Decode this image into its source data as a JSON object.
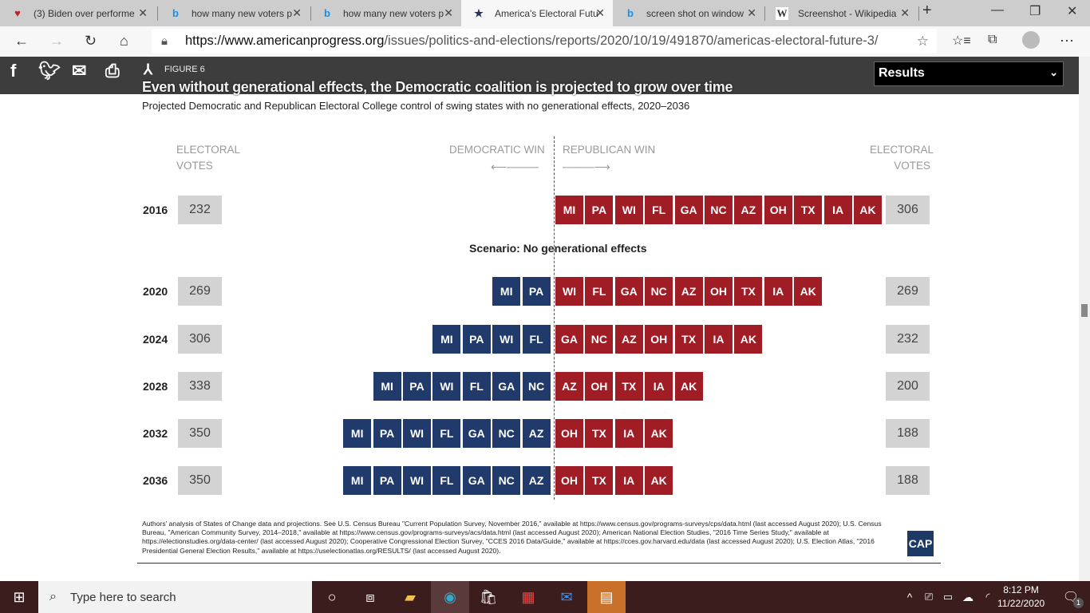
{
  "browser": {
    "tabs": [
      {
        "label": "(3) Biden over performe",
        "icon": "cap-favicon"
      },
      {
        "label": "how many new voters p",
        "icon": "bing-icon"
      },
      {
        "label": "how many new voters p",
        "icon": "bing-icon"
      },
      {
        "label": "America's Electoral Futu",
        "icon": "star-favicon",
        "active": true
      },
      {
        "label": "screen shot on window",
        "icon": "bing-icon"
      },
      {
        "label": "Screenshot - Wikipedia",
        "icon": "wikipedia-icon"
      }
    ],
    "url_host": "https://www.americanprogress.org",
    "url_path": "/issues/politics-and-elections/reports/2020/10/19/491870/americas-electoral-future-3/"
  },
  "page": {
    "results_select": "Results",
    "figure_label": "FIGURE 6",
    "title": "Even without generational effects, the Democratic coalition is projected to grow over time",
    "subtitle": "Projected Democratic and Republican Electoral College control of swing states with no generational effects, 2020–2036",
    "hdr_left": "ELECTORAL\nVOTES",
    "hdr_dem": "DEMOCRATIC WIN",
    "hdr_rep": "REPUBLICAN WIN",
    "hdr_right": "ELECTORAL\nVOTES",
    "scenario": "Scenario: No generational effects",
    "note": "Authors' analysis of States of Change data and projections. See U.S. Census Bureau \"Current Population Survey, November 2016,\" available at https://www.census.gov/programs-surveys/cps/data.html (last accessed August 2020); U.S. Census Bureau, \"American Community Survey, 2014–2018,\" available at https://www.census.gov/programs-surveys/acs/data.html (last accessed August 2020); American National Election Studies, \"2016 Time Series Study,\" available at https://electionstudies.org/data-center/ (last accessed August 2020); Cooperative Congressional Election Survey, \"CCES 2016 Data/Guide,\" available at https://cces.gov.harvard.edu/data (last accessed August 2020); U.S. Election Atlas, \"2016 Presidential General Election Results,\" available at https://uselectionatlas.org/RESULTS/ (last accessed August 2020).",
    "logo": "CAP"
  },
  "chart_data": {
    "type": "table",
    "colors": {
      "democratic": "#1f3a6b",
      "republican": "#a11d26",
      "votes_box": "#d3d3d3"
    },
    "rows": [
      {
        "year": "2016",
        "dem_votes": "232",
        "dem": [],
        "rep": [
          "MI",
          "PA",
          "WI",
          "FL",
          "GA",
          "NC",
          "AZ",
          "OH",
          "TX",
          "IA",
          "AK"
        ],
        "rep_votes": "306"
      },
      {
        "year": "2020",
        "dem_votes": "269",
        "dem": [
          "MI",
          "PA"
        ],
        "rep": [
          "WI",
          "FL",
          "GA",
          "NC",
          "AZ",
          "OH",
          "TX",
          "IA",
          "AK"
        ],
        "rep_votes": "269"
      },
      {
        "year": "2024",
        "dem_votes": "306",
        "dem": [
          "MI",
          "PA",
          "WI",
          "FL"
        ],
        "rep": [
          "GA",
          "NC",
          "AZ",
          "OH",
          "TX",
          "IA",
          "AK"
        ],
        "rep_votes": "232"
      },
      {
        "year": "2028",
        "dem_votes": "338",
        "dem": [
          "MI",
          "PA",
          "WI",
          "FL",
          "GA",
          "NC"
        ],
        "rep": [
          "AZ",
          "OH",
          "TX",
          "IA",
          "AK"
        ],
        "rep_votes": "200"
      },
      {
        "year": "2032",
        "dem_votes": "350",
        "dem": [
          "MI",
          "PA",
          "WI",
          "FL",
          "GA",
          "NC",
          "AZ"
        ],
        "rep": [
          "OH",
          "TX",
          "IA",
          "AK"
        ],
        "rep_votes": "188"
      },
      {
        "year": "2036",
        "dem_votes": "350",
        "dem": [
          "MI",
          "PA",
          "WI",
          "FL",
          "GA",
          "NC",
          "AZ"
        ],
        "rep": [
          "OH",
          "TX",
          "IA",
          "AK"
        ],
        "rep_votes": "188"
      }
    ]
  },
  "taskbar": {
    "search_placeholder": "Type here to search",
    "time": "8:12 PM",
    "date": "11/22/2020",
    "notifications": "1"
  }
}
